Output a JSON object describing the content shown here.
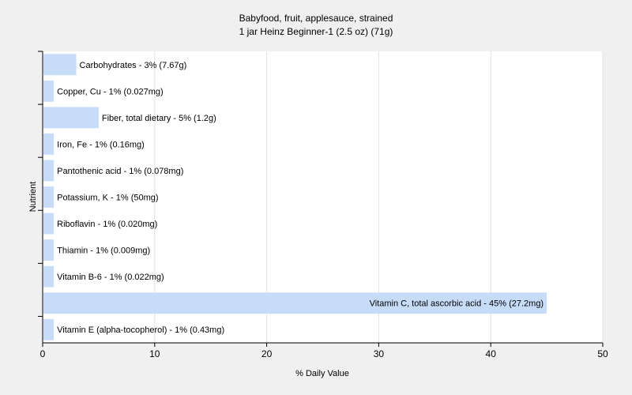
{
  "chart_data": {
    "type": "bar",
    "orientation": "horizontal",
    "title": "Babyfood, fruit, applesauce, strained",
    "subtitle": "1 jar Heinz Beginner-1 (2.5 oz) (71g)",
    "xlabel": "% Daily Value",
    "ylabel": "Nutrient",
    "xlim": [
      0,
      50
    ],
    "xticks": [
      "0",
      "10",
      "20",
      "30",
      "40",
      "50"
    ],
    "grid": true,
    "bar_color": "#c6dcf8",
    "categories": [
      "Carbohydrates",
      "Copper, Cu",
      "Fiber, total dietary",
      "Iron, Fe",
      "Pantothenic acid",
      "Potassium, K",
      "Riboflavin",
      "Thiamin",
      "Vitamin B-6",
      "Vitamin C, total ascorbic acid",
      "Vitamin E (alpha-tocopherol)"
    ],
    "values": [
      3,
      1,
      5,
      1,
      1,
      1,
      1,
      1,
      1,
      45,
      1
    ],
    "labels": [
      "Carbohydrates - 3% (7.67g)",
      "Copper, Cu - 1% (0.027mg)",
      "Fiber, total dietary - 5% (1.2g)",
      "Iron, Fe - 1% (0.16mg)",
      "Pantothenic acid - 1% (0.078mg)",
      "Potassium, K - 1% (50mg)",
      "Riboflavin - 1% (0.020mg)",
      "Thiamin - 1% (0.009mg)",
      "Vitamin B-6 - 1% (0.022mg)",
      "Vitamin C, total ascorbic acid - 45% (27.2mg)",
      "Vitamin E (alpha-tocopherol) - 1% (0.43mg)"
    ]
  }
}
